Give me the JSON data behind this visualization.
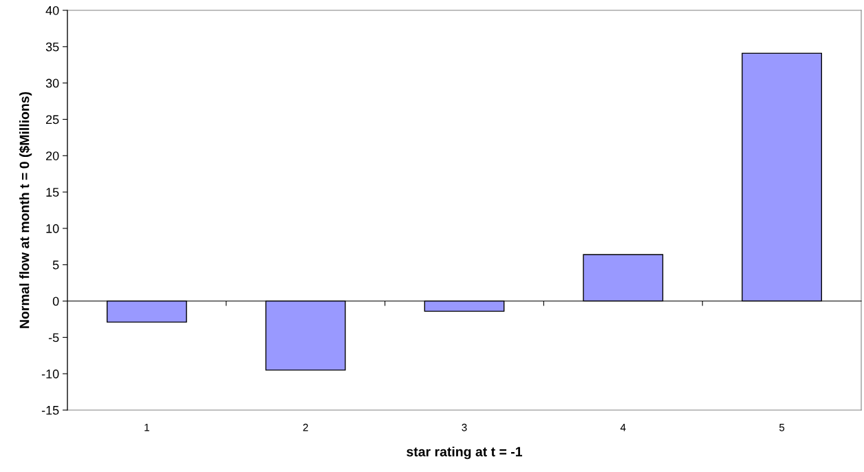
{
  "chart_data": {
    "type": "bar",
    "xlabel": "star rating at t = -1",
    "ylabel": "Normal flow at month t = 0 ($Millions)",
    "categories": [
      "1",
      "2",
      "3",
      "4",
      "5"
    ],
    "values": [
      -2.9,
      -9.5,
      -1.4,
      6.4,
      34.1
    ],
    "color": "#9999ff",
    "ylim": [
      -15,
      40
    ],
    "yticks": [
      -15,
      -10,
      -5,
      0,
      5,
      10,
      15,
      20,
      25,
      30,
      35,
      40
    ],
    "legend": false
  }
}
